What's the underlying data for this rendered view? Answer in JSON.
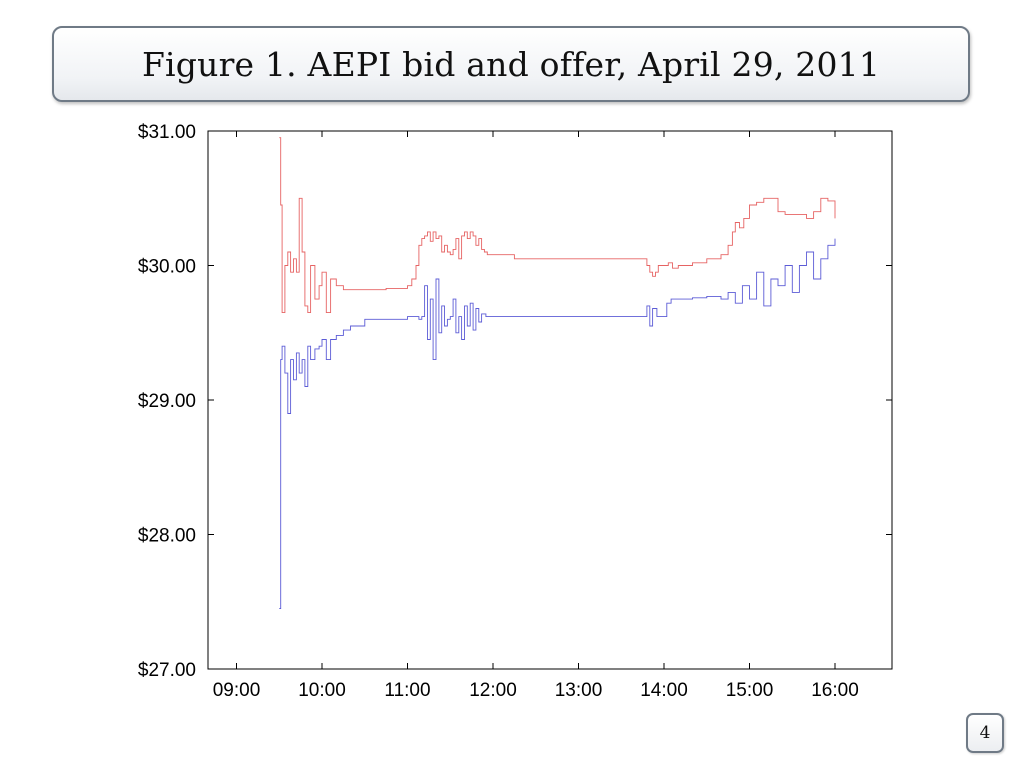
{
  "slide": {
    "title": "Figure 1. AEPI bid and offer, April 29, 2011",
    "page_number": "4"
  },
  "colors": {
    "bid": "#3333cc",
    "offer": "#e03c3c",
    "axis": "#000000"
  },
  "chart_data": {
    "type": "line",
    "title": "",
    "xlabel": "",
    "ylabel": "",
    "x_ticks": [
      "09:00",
      "10:00",
      "11:00",
      "12:00",
      "13:00",
      "14:00",
      "15:00",
      "16:00"
    ],
    "y_ticks": [
      "$31.00",
      "$30.00",
      "$29.00",
      "$28.00",
      "$27.00"
    ],
    "xlim": [
      "08:40",
      "16:40"
    ],
    "ylim": [
      27.0,
      31.0
    ],
    "grid": false,
    "legend": "none",
    "series": [
      {
        "key": "offer",
        "x": [
          "09:30",
          "09:31",
          "09:32",
          "09:34",
          "09:36",
          "09:38",
          "09:40",
          "09:42",
          "09:44",
          "09:46",
          "09:48",
          "09:50",
          "09:52",
          "09:55",
          "09:58",
          "10:00",
          "10:03",
          "10:06",
          "10:10",
          "10:15",
          "10:20",
          "10:30",
          "10:45",
          "11:00",
          "11:03",
          "11:06",
          "11:08",
          "11:10",
          "11:12",
          "11:14",
          "11:16",
          "11:18",
          "11:20",
          "11:22",
          "11:24",
          "11:26",
          "11:28",
          "11:30",
          "11:32",
          "11:34",
          "11:36",
          "11:38",
          "11:40",
          "11:42",
          "11:44",
          "11:46",
          "11:48",
          "11:50",
          "11:52",
          "11:54",
          "11:56",
          "11:58",
          "12:00",
          "12:02",
          "12:04",
          "12:06",
          "12:08",
          "12:15",
          "12:30",
          "13:00",
          "13:30",
          "13:45",
          "13:48",
          "13:50",
          "13:52",
          "13:54",
          "13:56",
          "14:00",
          "14:03",
          "14:06",
          "14:10",
          "14:20",
          "14:30",
          "14:40",
          "14:45",
          "14:48",
          "14:50",
          "14:53",
          "14:56",
          "15:00",
          "15:05",
          "15:10",
          "15:15",
          "15:20",
          "15:25",
          "15:30",
          "15:35",
          "15:40",
          "15:45",
          "15:50",
          "15:55",
          "16:00"
        ],
        "y": [
          30.95,
          30.45,
          29.65,
          30.0,
          30.1,
          29.95,
          30.05,
          29.95,
          30.5,
          30.1,
          29.7,
          29.65,
          30.0,
          29.75,
          29.85,
          29.95,
          29.65,
          29.9,
          29.85,
          29.82,
          29.82,
          29.82,
          29.83,
          29.85,
          29.9,
          30.0,
          30.15,
          30.2,
          30.22,
          30.25,
          30.18,
          30.25,
          30.2,
          30.22,
          30.1,
          30.15,
          30.1,
          30.08,
          30.12,
          30.2,
          30.05,
          30.22,
          30.25,
          30.2,
          30.25,
          30.22,
          30.15,
          30.2,
          30.12,
          30.1,
          30.08,
          30.08,
          30.08,
          30.08,
          30.08,
          30.08,
          30.08,
          30.05,
          30.05,
          30.05,
          30.05,
          30.05,
          30.0,
          29.95,
          29.92,
          29.95,
          30.0,
          30.0,
          30.02,
          29.98,
          30.0,
          30.02,
          30.05,
          30.08,
          30.15,
          30.25,
          30.32,
          30.28,
          30.35,
          30.45,
          30.47,
          30.5,
          30.5,
          30.4,
          30.38,
          30.38,
          30.38,
          30.35,
          30.4,
          30.5,
          30.48,
          30.35
        ]
      },
      {
        "key": "bid",
        "x": [
          "09:30",
          "09:31",
          "09:32",
          "09:34",
          "09:36",
          "09:38",
          "09:40",
          "09:42",
          "09:44",
          "09:46",
          "09:48",
          "09:50",
          "09:52",
          "09:55",
          "09:58",
          "10:00",
          "10:03",
          "10:06",
          "10:10",
          "10:15",
          "10:20",
          "10:30",
          "10:45",
          "11:00",
          "11:05",
          "11:08",
          "11:10",
          "11:12",
          "11:14",
          "11:16",
          "11:18",
          "11:20",
          "11:22",
          "11:24",
          "11:26",
          "11:28",
          "11:30",
          "11:32",
          "11:34",
          "11:36",
          "11:38",
          "11:40",
          "11:42",
          "11:44",
          "11:46",
          "11:48",
          "11:50",
          "11:52",
          "11:55",
          "12:00",
          "12:10",
          "12:30",
          "12:45",
          "13:00",
          "13:30",
          "13:45",
          "13:48",
          "13:50",
          "13:52",
          "13:55",
          "14:00",
          "14:02",
          "14:05",
          "14:10",
          "14:20",
          "14:30",
          "14:40",
          "14:45",
          "14:50",
          "14:55",
          "15:00",
          "15:05",
          "15:10",
          "15:15",
          "15:20",
          "15:25",
          "15:30",
          "15:35",
          "15:40",
          "15:45",
          "15:50",
          "15:55",
          "16:00"
        ],
        "y": [
          27.45,
          29.3,
          29.4,
          29.2,
          28.9,
          29.3,
          29.15,
          29.35,
          29.2,
          29.3,
          29.1,
          29.4,
          29.3,
          29.38,
          29.4,
          29.45,
          29.3,
          29.45,
          29.48,
          29.52,
          29.55,
          29.6,
          29.6,
          29.62,
          29.62,
          29.6,
          29.62,
          29.85,
          29.45,
          29.75,
          29.3,
          29.9,
          29.5,
          29.7,
          29.55,
          29.6,
          29.62,
          29.75,
          29.5,
          29.62,
          29.45,
          29.7,
          29.55,
          29.72,
          29.52,
          29.68,
          29.58,
          29.64,
          29.62,
          29.62,
          29.62,
          29.62,
          29.62,
          29.62,
          29.62,
          29.62,
          29.7,
          29.55,
          29.68,
          29.62,
          29.62,
          29.72,
          29.75,
          29.75,
          29.76,
          29.77,
          29.75,
          29.8,
          29.72,
          29.85,
          29.75,
          29.95,
          29.7,
          29.9,
          29.85,
          30.0,
          29.8,
          30.0,
          30.1,
          29.9,
          30.05,
          30.15,
          30.2
        ]
      }
    ]
  }
}
